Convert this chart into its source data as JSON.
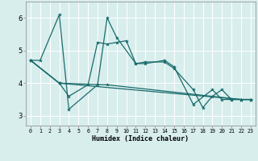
{
  "xlabel": "Humidex (Indice chaleur)",
  "background_color": "#d8eeed",
  "grid_color": "#b8d8d8",
  "line_color": "#1a6b6b",
  "ylim": [
    2.7,
    6.5
  ],
  "xlim": [
    -0.5,
    23.5
  ],
  "yticks": [
    3,
    4,
    5,
    6
  ],
  "xticks": [
    0,
    1,
    2,
    3,
    4,
    5,
    6,
    7,
    8,
    9,
    10,
    11,
    12,
    13,
    14,
    15,
    16,
    17,
    18,
    19,
    20,
    21,
    22,
    23
  ],
  "series": [
    {
      "x": [
        0,
        1,
        3,
        4,
        7,
        8,
        9,
        11,
        12,
        14,
        15,
        17,
        19,
        20,
        21,
        22,
        23
      ],
      "y": [
        4.7,
        4.7,
        6.1,
        3.2,
        3.95,
        6.0,
        5.4,
        4.6,
        4.6,
        4.7,
        4.5,
        3.35,
        3.8,
        3.5,
        3.5,
        3.5,
        3.5
      ]
    },
    {
      "x": [
        0,
        3,
        4,
        6,
        7,
        8,
        9,
        10,
        11,
        12,
        14,
        15,
        17,
        18,
        19,
        20,
        21,
        22,
        23
      ],
      "y": [
        4.7,
        4.0,
        3.6,
        3.95,
        5.25,
        5.2,
        5.25,
        5.3,
        4.6,
        4.65,
        4.65,
        4.45,
        3.8,
        3.25,
        3.6,
        3.8,
        3.5,
        3.5,
        3.5
      ]
    },
    {
      "x": [
        0,
        3,
        8,
        22,
        23
      ],
      "y": [
        4.7,
        4.0,
        3.95,
        3.5,
        3.5
      ]
    },
    {
      "x": [
        0,
        3,
        22,
        23
      ],
      "y": [
        4.7,
        4.0,
        3.5,
        3.5
      ]
    }
  ]
}
